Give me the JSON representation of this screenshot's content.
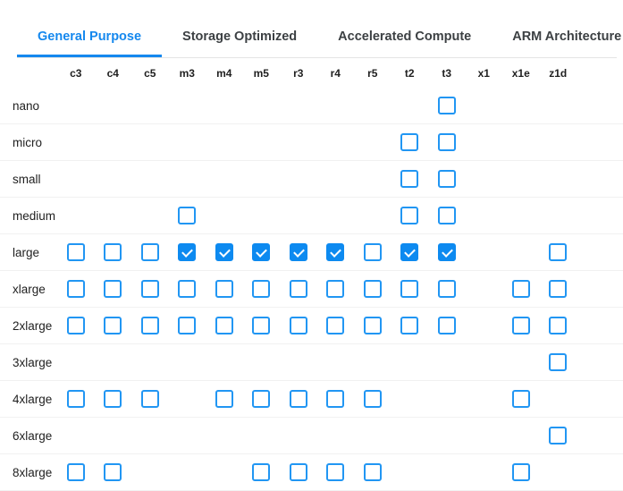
{
  "tabs": [
    {
      "label": "General Purpose",
      "active": true
    },
    {
      "label": "Storage Optimized",
      "active": false
    },
    {
      "label": "Accelerated Compute",
      "active": false
    },
    {
      "label": "ARM Architecture",
      "active": false
    }
  ],
  "colors": {
    "accent_blue": "#1588ee",
    "checkbox_border_blue": "#2196f3",
    "checkbox_checked_fill": "#0d8af0",
    "tab_inactive_text": "#3c4043",
    "label_text": "#1f1f1f",
    "row_divider": "#f1f1f1",
    "tab_divider": "#e4e4e4"
  },
  "matrix": {
    "columns": [
      "c3",
      "c4",
      "c5",
      "m3",
      "m4",
      "m5",
      "r3",
      "r4",
      "r5",
      "t2",
      "t3",
      "x1",
      "x1e",
      "z1d"
    ],
    "rows": [
      {
        "label": "nano",
        "cells": [
          null,
          null,
          null,
          null,
          null,
          null,
          null,
          null,
          null,
          null,
          "unchecked",
          null,
          null,
          null
        ]
      },
      {
        "label": "micro",
        "cells": [
          null,
          null,
          null,
          null,
          null,
          null,
          null,
          null,
          null,
          "unchecked",
          "unchecked",
          null,
          null,
          null
        ]
      },
      {
        "label": "small",
        "cells": [
          null,
          null,
          null,
          null,
          null,
          null,
          null,
          null,
          null,
          "unchecked",
          "unchecked",
          null,
          null,
          null
        ]
      },
      {
        "label": "medium",
        "cells": [
          null,
          null,
          null,
          "unchecked",
          null,
          null,
          null,
          null,
          null,
          "unchecked",
          "unchecked",
          null,
          null,
          null
        ]
      },
      {
        "label": "large",
        "cells": [
          "unchecked",
          "unchecked",
          "unchecked",
          "checked",
          "checked",
          "checked",
          "checked",
          "checked",
          "unchecked",
          "checked",
          "checked",
          null,
          null,
          "unchecked"
        ]
      },
      {
        "label": "xlarge",
        "cells": [
          "unchecked",
          "unchecked",
          "unchecked",
          "unchecked",
          "unchecked",
          "unchecked",
          "unchecked",
          "unchecked",
          "unchecked",
          "unchecked",
          "unchecked",
          null,
          "unchecked",
          "unchecked"
        ]
      },
      {
        "label": "2xlarge",
        "cells": [
          "unchecked",
          "unchecked",
          "unchecked",
          "unchecked",
          "unchecked",
          "unchecked",
          "unchecked",
          "unchecked",
          "unchecked",
          "unchecked",
          "unchecked",
          null,
          "unchecked",
          "unchecked"
        ]
      },
      {
        "label": "3xlarge",
        "cells": [
          null,
          null,
          null,
          null,
          null,
          null,
          null,
          null,
          null,
          null,
          null,
          null,
          null,
          "unchecked"
        ]
      },
      {
        "label": "4xlarge",
        "cells": [
          "unchecked",
          "unchecked",
          "unchecked",
          null,
          "unchecked",
          "unchecked",
          "unchecked",
          "unchecked",
          "unchecked",
          null,
          null,
          null,
          "unchecked",
          null
        ]
      },
      {
        "label": "6xlarge",
        "cells": [
          null,
          null,
          null,
          null,
          null,
          null,
          null,
          null,
          null,
          null,
          null,
          null,
          null,
          "unchecked"
        ]
      },
      {
        "label": "8xlarge",
        "cells": [
          "unchecked",
          "unchecked",
          null,
          null,
          null,
          "unchecked",
          "unchecked",
          "unchecked",
          "unchecked",
          null,
          null,
          null,
          "unchecked",
          null
        ]
      }
    ]
  }
}
